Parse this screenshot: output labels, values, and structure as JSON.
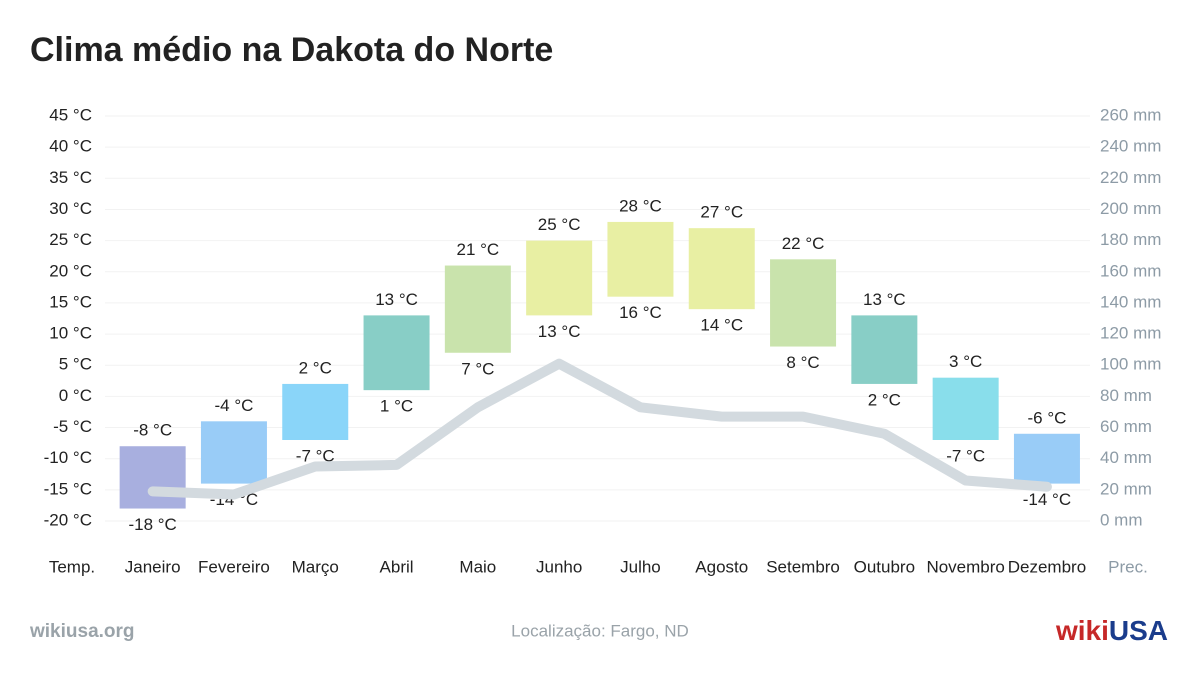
{
  "chart_data": {
    "type": "range-bar",
    "title": "Clima médio na Dakota do Norte",
    "categories": [
      "Janeiro",
      "Fevereiro",
      "Março",
      "Abril",
      "Maio",
      "Junho",
      "Julho",
      "Agosto",
      "Setembro",
      "Outubro",
      "Novembro",
      "Dezembro"
    ],
    "ylabel": "Temp.",
    "y2label": "Prec.",
    "high": [
      -8,
      -4,
      2,
      13,
      21,
      25,
      28,
      27,
      22,
      13,
      3,
      -6
    ],
    "high_labels": [
      "-8 °C",
      "-4 °C",
      "2 °C",
      "13 °C",
      "21 °C",
      "25 °C",
      "28 °C",
      "27 °C",
      "22 °C",
      "13 °C",
      "3 °C",
      "-6 °C"
    ],
    "low": [
      -18,
      -14,
      -7,
      1,
      7,
      13,
      16,
      14,
      8,
      2,
      -7,
      -14
    ],
    "low_labels": [
      "-18 °C",
      "-14 °C",
      "-7 °C",
      "1 °C",
      "7 °C",
      "13 °C",
      "16 °C",
      "14 °C",
      "8 °C",
      "2 °C",
      "-7 °C",
      "-14 °C"
    ],
    "colors": [
      "#a3abdd",
      "#93c9f7",
      "#84d3f9",
      "#82cbc3",
      "#c6e2a8",
      "#e7ee9e",
      "#e7ee9e",
      "#e7ee9e",
      "#c6e2a8",
      "#82cbc3",
      "#83dcea",
      "#93c9f7"
    ],
    "precipitation": [
      19,
      17,
      35,
      36,
      73,
      101,
      73,
      67,
      67,
      56,
      26,
      22
    ],
    "precipitation_axis": "y2",
    "precipitation_color": "#d3dadf",
    "ylim": [
      -20,
      45
    ],
    "yticks": [
      {
        "value": -20,
        "label": "-20 °C"
      },
      {
        "value": -15,
        "label": "-15 °C"
      },
      {
        "value": -10,
        "label": "-10 °C"
      },
      {
        "value": -5,
        "label": "-5 °C"
      },
      {
        "value": 0,
        "label": "0 °C"
      },
      {
        "value": 5,
        "label": "5 °C"
      },
      {
        "value": 10,
        "label": "10 °C"
      },
      {
        "value": 15,
        "label": "15 °C"
      },
      {
        "value": 20,
        "label": "20 °C"
      },
      {
        "value": 25,
        "label": "25 °C"
      },
      {
        "value": 30,
        "label": "30 °C"
      },
      {
        "value": 35,
        "label": "35 °C"
      },
      {
        "value": 40,
        "label": "40 °C"
      },
      {
        "value": 45,
        "label": "45 °C"
      }
    ],
    "y2lim": [
      0,
      260
    ],
    "y2ticks": [
      {
        "value": 0,
        "label": "0 mm"
      },
      {
        "value": 20,
        "label": "20 mm"
      },
      {
        "value": 40,
        "label": "40 mm"
      },
      {
        "value": 60,
        "label": "60 mm"
      },
      {
        "value": 80,
        "label": "80 mm"
      },
      {
        "value": 100,
        "label": "100 mm"
      },
      {
        "value": 120,
        "label": "120 mm"
      },
      {
        "value": 140,
        "label": "140 mm"
      },
      {
        "value": 160,
        "label": "160 mm"
      },
      {
        "value": 180,
        "label": "180 mm"
      },
      {
        "value": 200,
        "label": "200 mm"
      },
      {
        "value": 220,
        "label": "220 mm"
      },
      {
        "value": 240,
        "label": "240 mm"
      },
      {
        "value": 260,
        "label": "260 mm"
      }
    ],
    "grid": true,
    "source": "wikiusa.org",
    "location": "Localização: Fargo, ND",
    "logo": [
      "wiki",
      "USA"
    ]
  }
}
